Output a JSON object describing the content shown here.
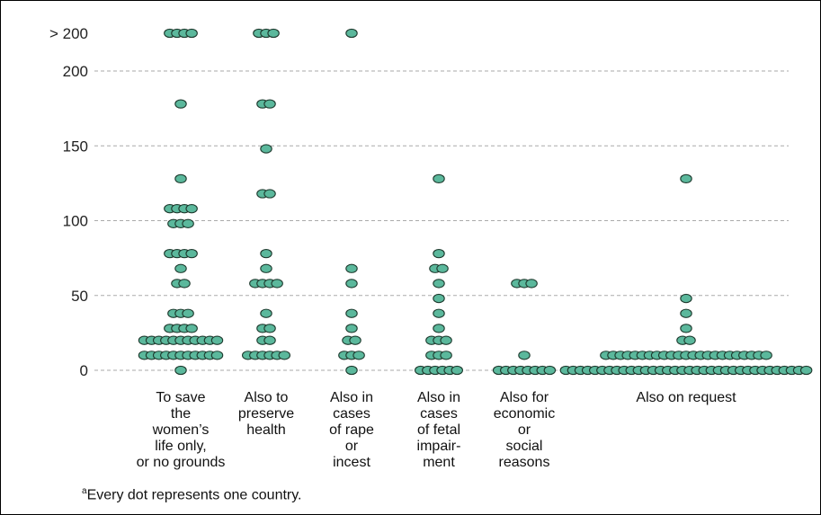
{
  "chart_data": {
    "type": "scatter",
    "subtype": "dot-plot",
    "title": "",
    "xlabel": "",
    "ylabel": "",
    "y_ticks": [
      "0",
      "50",
      "100",
      "150",
      "200",
      "> 200"
    ],
    "ylim": [
      0,
      200
    ],
    "grid": true,
    "dot_color": "#5bb89c",
    "dot_edge_color": "#1e3a2e",
    "categories": [
      {
        "label_lines": [
          "To save",
          "the",
          "women’s",
          "life only,",
          "or no grounds"
        ],
        "columns": [
          {
            "value": ">200",
            "count": 4
          },
          {
            "value": 178,
            "count": 1
          },
          {
            "value": 128,
            "count": 1
          },
          {
            "value": 108,
            "count": 4
          },
          {
            "value": 98,
            "count": 3
          },
          {
            "value": 78,
            "count": 4
          },
          {
            "value": 68,
            "count": 1
          },
          {
            "value": 58,
            "count": 2
          },
          {
            "value": 38,
            "count": 3
          },
          {
            "value": 28,
            "count": 4
          },
          {
            "value": 20,
            "count": 11
          },
          {
            "value": 10,
            "count": 11
          },
          {
            "value": 0,
            "count": 1
          }
        ]
      },
      {
        "label_lines": [
          "Also to",
          "preserve",
          "health"
        ],
        "columns": [
          {
            "value": ">200",
            "count": 3
          },
          {
            "value": 178,
            "count": 2
          },
          {
            "value": 148,
            "count": 1
          },
          {
            "value": 118,
            "count": 2
          },
          {
            "value": 78,
            "count": 1
          },
          {
            "value": 68,
            "count": 1
          },
          {
            "value": 58,
            "count": 4
          },
          {
            "value": 38,
            "count": 1
          },
          {
            "value": 28,
            "count": 2
          },
          {
            "value": 20,
            "count": 2
          },
          {
            "value": 10,
            "count": 6
          }
        ]
      },
      {
        "label_lines": [
          "Also in",
          "cases",
          "of rape",
          "or",
          "incest"
        ],
        "columns": [
          {
            "value": ">200",
            "count": 1
          },
          {
            "value": 68,
            "count": 1
          },
          {
            "value": 58,
            "count": 1
          },
          {
            "value": 38,
            "count": 1
          },
          {
            "value": 28,
            "count": 1
          },
          {
            "value": 20,
            "count": 2
          },
          {
            "value": 10,
            "count": 3
          },
          {
            "value": 0,
            "count": 1
          }
        ]
      },
      {
        "label_lines": [
          "Also in",
          "cases",
          "of fetal",
          "impair-",
          "ment"
        ],
        "columns": [
          {
            "value": 128,
            "count": 1
          },
          {
            "value": 78,
            "count": 1
          },
          {
            "value": 68,
            "count": 2
          },
          {
            "value": 58,
            "count": 1
          },
          {
            "value": 48,
            "count": 1
          },
          {
            "value": 38,
            "count": 1
          },
          {
            "value": 28,
            "count": 1
          },
          {
            "value": 20,
            "count": 3
          },
          {
            "value": 10,
            "count": 3
          },
          {
            "value": 0,
            "count": 6
          }
        ]
      },
      {
        "label_lines": [
          "Also for",
          "economic",
          "or",
          "social",
          "reasons"
        ],
        "columns": [
          {
            "value": 58,
            "count": 3
          },
          {
            "value": 10,
            "count": 1
          },
          {
            "value": 0,
            "count": 8
          }
        ]
      },
      {
        "label_lines": [
          "Also on request"
        ],
        "columns": [
          {
            "value": 128,
            "count": 1
          },
          {
            "value": 48,
            "count": 1
          },
          {
            "value": 38,
            "count": 1
          },
          {
            "value": 28,
            "count": 1
          },
          {
            "value": 20,
            "count": 2
          },
          {
            "value": 10,
            "count": 23
          },
          {
            "value": 0,
            "count": 34
          }
        ]
      }
    ]
  },
  "footnote": {
    "marker": "a",
    "text": "Every dot represents one country."
  }
}
